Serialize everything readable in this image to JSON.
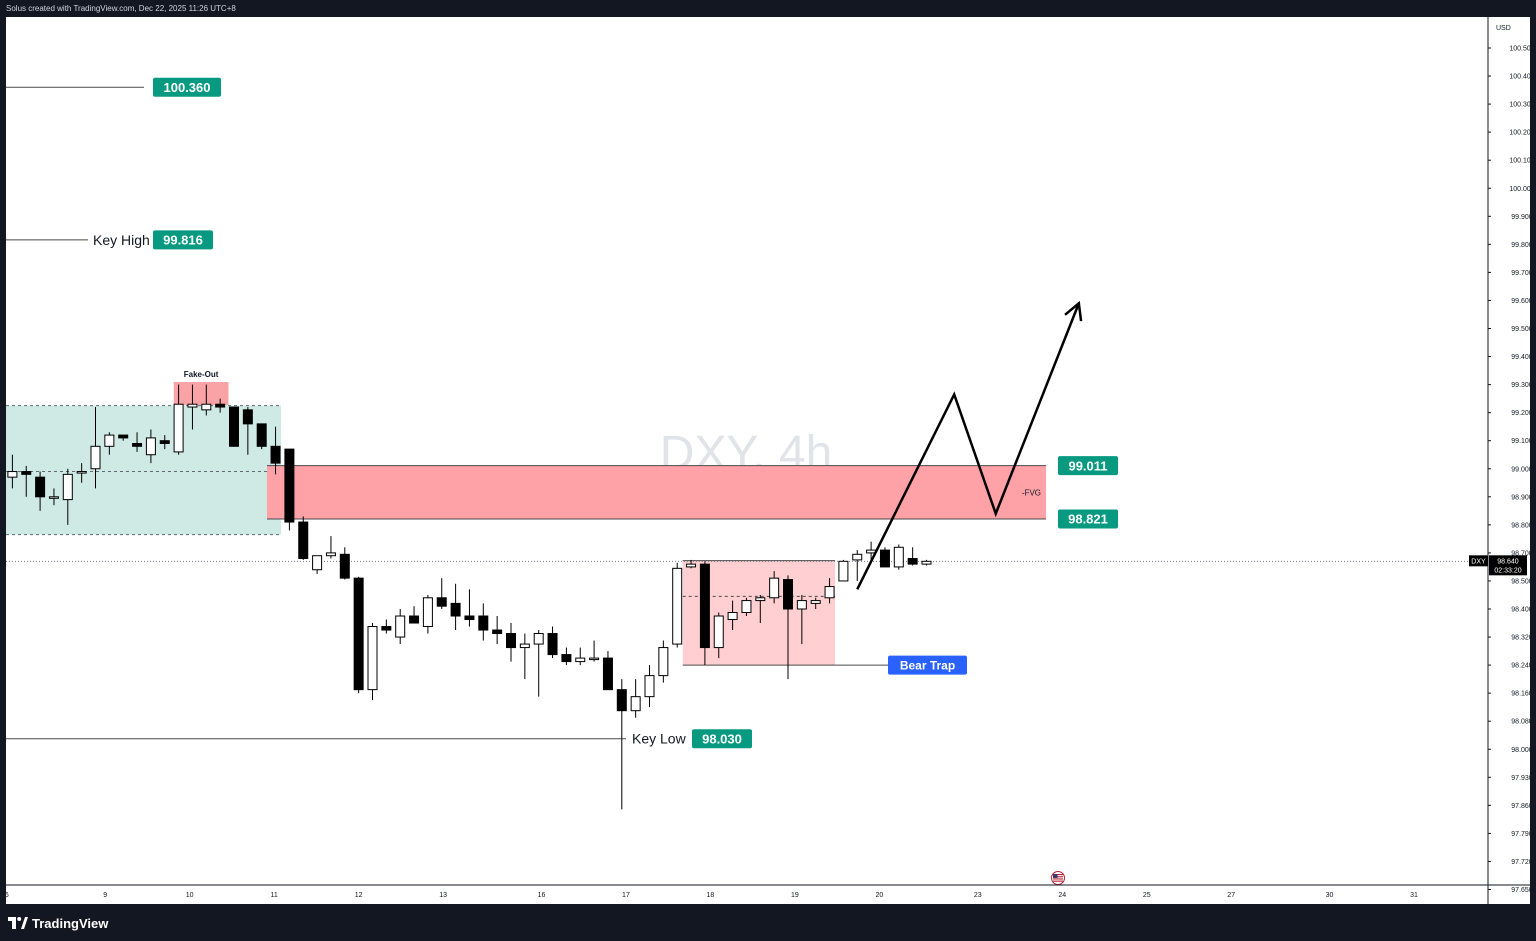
{
  "header": {
    "credit": "Solus created with TradingView.com, Dec 22, 2025 11:26 UTC+8"
  },
  "footer": {
    "brand": "TradingView",
    "logo_icon": "tradingview-logo-icon"
  },
  "colors": {
    "candle_up_fill": "#ffffff",
    "candle_down_fill": "#000000",
    "range_box": "#cfeae4",
    "fvg_zone": "#ffa2a8",
    "bear_trap_box": "#ffcfd1",
    "fake_out_box": "#f9a3a7",
    "price_badge": "#089981",
    "bear_trap_badge": "#2962ff"
  },
  "chart_data": {
    "type": "candlestick",
    "symbol": "DXY",
    "timeframe": "4h",
    "watermark": "DXY, 4h",
    "currency": "USD",
    "last_price": "98.640",
    "countdown": "02:33:20",
    "y_ticks": [
      "100.500",
      "100.400",
      "100.300",
      "100.200",
      "100.100",
      "100.000",
      "99.900",
      "99.800",
      "99.700",
      "99.600",
      "99.500",
      "99.400",
      "99.300",
      "99.200",
      "99.100",
      "99.000",
      "98.900",
      "98.800",
      "98.700",
      "98.500",
      "98.400",
      "98.320",
      "98.240",
      "98.160",
      "98.080",
      "98.000",
      "97.930",
      "97.860",
      "97.790",
      "97.720",
      "97.650",
      "97.585"
    ],
    "y_tick_values": [
      100.5,
      100.4,
      100.3,
      100.2,
      100.1,
      100.0,
      99.9,
      99.8,
      99.7,
      99.6,
      99.5,
      99.4,
      99.3,
      99.2,
      99.1,
      99.0,
      98.9,
      98.8,
      98.7,
      98.5,
      98.4,
      98.32,
      98.24,
      98.16,
      98.08,
      98.0,
      97.93,
      97.86,
      97.79,
      97.72,
      97.65,
      97.585
    ],
    "x_ticks": [
      "6",
      "9",
      "10",
      "11",
      "12",
      "13",
      "16",
      "17",
      "18",
      "19",
      "20",
      "23",
      "24",
      "25",
      "27",
      "30",
      "31"
    ],
    "x_tick_bars": [
      -0.4,
      6.7,
      12.8,
      18.9,
      25,
      31.1,
      38.2,
      44.3,
      50.4,
      56.5,
      62.6,
      69.7,
      75.8,
      81.9,
      88,
      95.1,
      101.2
    ],
    "candles": [
      {
        "o": 98.97,
        "h": 99.05,
        "l": 98.93,
        "c": 98.99
      },
      {
        "o": 98.99,
        "h": 99.01,
        "l": 98.9,
        "c": 98.98
      },
      {
        "o": 98.97,
        "h": 98.99,
        "l": 98.85,
        "c": 98.9
      },
      {
        "o": 98.9,
        "h": 98.93,
        "l": 98.87,
        "c": 98.9
      },
      {
        "o": 98.89,
        "h": 99.0,
        "l": 98.8,
        "c": 98.98
      },
      {
        "o": 98.99,
        "h": 99.02,
        "l": 98.95,
        "c": 98.99
      },
      {
        "o": 99.0,
        "h": 99.22,
        "l": 98.93,
        "c": 99.08
      },
      {
        "o": 99.08,
        "h": 99.13,
        "l": 99.05,
        "c": 99.12
      },
      {
        "o": 99.12,
        "h": 99.12,
        "l": 99.1,
        "c": 99.11
      },
      {
        "o": 99.09,
        "h": 99.13,
        "l": 99.06,
        "c": 99.08
      },
      {
        "o": 99.05,
        "h": 99.14,
        "l": 99.02,
        "c": 99.11
      },
      {
        "o": 99.1,
        "h": 99.12,
        "l": 99.07,
        "c": 99.09
      },
      {
        "o": 99.06,
        "h": 99.3,
        "l": 99.05,
        "c": 99.23
      },
      {
        "o": 99.22,
        "h": 99.3,
        "l": 99.14,
        "c": 99.23
      },
      {
        "o": 99.21,
        "h": 99.3,
        "l": 99.19,
        "c": 99.23
      },
      {
        "o": 99.23,
        "h": 99.25,
        "l": 99.2,
        "c": 99.22
      },
      {
        "o": 99.22,
        "h": 99.22,
        "l": 99.08,
        "c": 99.08
      },
      {
        "o": 99.21,
        "h": 99.22,
        "l": 99.05,
        "c": 99.16
      },
      {
        "o": 99.16,
        "h": 99.16,
        "l": 99.07,
        "c": 99.08
      },
      {
        "o": 99.08,
        "h": 99.15,
        "l": 98.98,
        "c": 99.02
      },
      {
        "o": 99.07,
        "h": 99.07,
        "l": 98.78,
        "c": 98.81
      },
      {
        "o": 98.81,
        "h": 98.83,
        "l": 98.65,
        "c": 98.66
      },
      {
        "o": 98.58,
        "h": 98.68,
        "l": 98.55,
        "c": 98.68
      },
      {
        "o": 98.68,
        "h": 98.76,
        "l": 98.66,
        "c": 98.7
      },
      {
        "o": 98.69,
        "h": 98.72,
        "l": 98.51,
        "c": 98.52
      },
      {
        "o": 98.52,
        "h": 98.53,
        "l": 98.16,
        "c": 98.17
      },
      {
        "o": 98.17,
        "h": 98.36,
        "l": 98.14,
        "c": 98.35
      },
      {
        "o": 98.35,
        "h": 98.37,
        "l": 98.33,
        "c": 98.34
      },
      {
        "o": 98.32,
        "h": 98.4,
        "l": 98.3,
        "c": 98.38
      },
      {
        "o": 98.38,
        "h": 98.41,
        "l": 98.36,
        "c": 98.36
      },
      {
        "o": 98.35,
        "h": 98.45,
        "l": 98.33,
        "c": 98.44
      },
      {
        "o": 98.44,
        "h": 98.52,
        "l": 98.4,
        "c": 98.41
      },
      {
        "o": 98.42,
        "h": 98.49,
        "l": 98.34,
        "c": 98.38
      },
      {
        "o": 98.38,
        "h": 98.47,
        "l": 98.35,
        "c": 98.37
      },
      {
        "o": 98.38,
        "h": 98.42,
        "l": 98.31,
        "c": 98.34
      },
      {
        "o": 98.34,
        "h": 98.38,
        "l": 98.3,
        "c": 98.33
      },
      {
        "o": 98.33,
        "h": 98.36,
        "l": 98.25,
        "c": 98.29
      },
      {
        "o": 98.29,
        "h": 98.33,
        "l": 98.2,
        "c": 98.3
      },
      {
        "o": 98.3,
        "h": 98.34,
        "l": 98.15,
        "c": 98.33
      },
      {
        "o": 98.33,
        "h": 98.35,
        "l": 98.26,
        "c": 98.27
      },
      {
        "o": 98.27,
        "h": 98.29,
        "l": 98.24,
        "c": 98.25
      },
      {
        "o": 98.25,
        "h": 98.29,
        "l": 98.24,
        "c": 98.26
      },
      {
        "o": 98.26,
        "h": 98.31,
        "l": 98.25,
        "c": 98.26
      },
      {
        "o": 98.26,
        "h": 98.28,
        "l": 98.17,
        "c": 98.17
      },
      {
        "o": 98.17,
        "h": 98.2,
        "l": 97.85,
        "c": 98.11
      },
      {
        "o": 98.11,
        "h": 98.2,
        "l": 98.09,
        "c": 98.15
      },
      {
        "o": 98.15,
        "h": 98.24,
        "l": 98.12,
        "c": 98.21
      },
      {
        "o": 98.21,
        "h": 98.31,
        "l": 98.19,
        "c": 98.29
      },
      {
        "o": 98.3,
        "h": 98.63,
        "l": 98.29,
        "c": 98.59
      },
      {
        "o": 98.6,
        "h": 98.65,
        "l": 98.59,
        "c": 98.62
      },
      {
        "o": 98.62,
        "h": 98.64,
        "l": 98.24,
        "c": 98.29
      },
      {
        "o": 98.29,
        "h": 98.39,
        "l": 98.26,
        "c": 98.38
      },
      {
        "o": 98.37,
        "h": 98.43,
        "l": 98.34,
        "c": 98.39
      },
      {
        "o": 98.39,
        "h": 98.44,
        "l": 98.38,
        "c": 98.43
      },
      {
        "o": 98.43,
        "h": 98.45,
        "l": 98.36,
        "c": 98.44
      },
      {
        "o": 98.44,
        "h": 98.57,
        "l": 98.42,
        "c": 98.52
      },
      {
        "o": 98.51,
        "h": 98.54,
        "l": 98.2,
        "c": 98.4
      },
      {
        "o": 98.4,
        "h": 98.45,
        "l": 98.3,
        "c": 98.43
      },
      {
        "o": 98.42,
        "h": 98.44,
        "l": 98.4,
        "c": 98.43
      },
      {
        "o": 98.44,
        "h": 98.52,
        "l": 98.42,
        "c": 98.48
      },
      {
        "o": 98.5,
        "h": 98.65,
        "l": 98.5,
        "c": 98.64
      },
      {
        "o": 98.65,
        "h": 98.71,
        "l": 98.5,
        "c": 98.69
      },
      {
        "o": 98.7,
        "h": 98.74,
        "l": 98.65,
        "c": 98.71
      },
      {
        "o": 98.71,
        "h": 98.72,
        "l": 98.6,
        "c": 98.6
      },
      {
        "o": 98.6,
        "h": 98.73,
        "l": 98.58,
        "c": 98.72
      },
      {
        "o": 98.66,
        "h": 98.72,
        "l": 98.61,
        "c": 98.62
      },
      {
        "o": 98.62,
        "h": 98.65,
        "l": 98.61,
        "c": 98.64
      }
    ],
    "levels": [
      {
        "label": "",
        "value": "100.360",
        "price": 100.36
      },
      {
        "label": "Key High",
        "value": "99.816",
        "price": 99.816
      },
      {
        "label": "Key Low",
        "value": "98.030",
        "price": 98.03
      }
    ],
    "fvg_zone": {
      "label": "-FVG",
      "top": "99.011",
      "bottom": "98.821",
      "top_price": 99.011,
      "bottom_price": 98.821
    },
    "range_zone": {
      "top_price": 99.225,
      "bottom_price": 98.765,
      "mid_price": 98.99
    },
    "fake_out": {
      "label": "Fake-Out"
    },
    "bear_trap": {
      "label": "Bear Trap",
      "top_price": 98.645,
      "bottom_price": 98.24,
      "mid_price": 98.445
    },
    "projection_path": [
      {
        "bar": 61,
        "price": 98.47
      },
      {
        "bar": 68,
        "price": 99.265
      },
      {
        "bar": 71,
        "price": 98.84
      },
      {
        "bar": 77,
        "price": 99.59
      }
    ]
  }
}
